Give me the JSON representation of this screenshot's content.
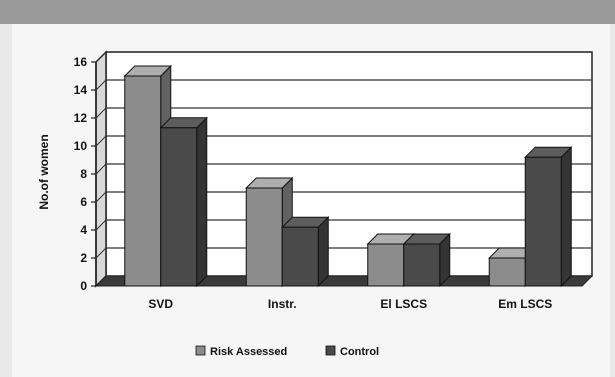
{
  "chart_data": {
    "type": "bar",
    "categories": [
      "SVD",
      "Instr.",
      "El LSCS",
      "Em LSCS"
    ],
    "series": [
      {
        "name": "Risk Assessed",
        "values": [
          15,
          7,
          3,
          2
        ],
        "color": "#8c8c8c"
      },
      {
        "name": "Control",
        "values": [
          11.3,
          4.2,
          3,
          9.2
        ],
        "color": "#4a4a4a"
      }
    ],
    "ylabel": "No.of women",
    "ylim": [
      0,
      16
    ],
    "yticks": [
      0,
      2,
      4,
      6,
      8,
      10,
      12,
      14,
      16
    ],
    "grid": true,
    "legend": "bottom",
    "three_d": true
  }
}
